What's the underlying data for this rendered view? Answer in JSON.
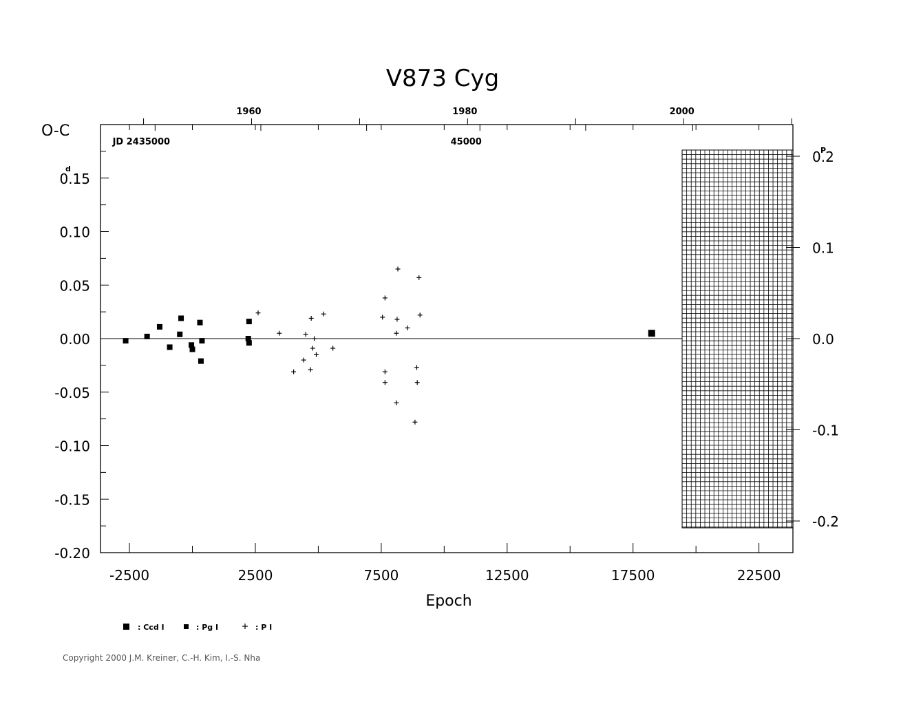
{
  "chart_data": {
    "type": "scatter",
    "title": "V873 Cyg",
    "xlabel": "Epoch",
    "ylabel": "O-C",
    "y_unit_left": "d",
    "y_unit_right": "P",
    "xlim": [
      -3650,
      23850
    ],
    "ylim": [
      -0.2,
      0.2
    ],
    "right_ylim": [
      -0.23,
      0.23
    ],
    "x_ticks": [
      "-2500",
      "2500",
      "7500",
      "12500",
      "17500",
      "22500"
    ],
    "x_tick_values": [
      -2500,
      2500,
      7500,
      12500,
      17500,
      22500
    ],
    "y_ticks": [
      "-0.20",
      "-0.15",
      "-0.10",
      "-0.05",
      "0.00",
      "0.05",
      "0.10",
      "0.15"
    ],
    "y_tick_values": [
      -0.2,
      -0.15,
      -0.1,
      -0.05,
      0.0,
      0.05,
      0.1,
      0.15
    ],
    "right_ticks": [
      "-0.2",
      "-0.1",
      "0.0",
      "0.1",
      "0.2"
    ],
    "right_tick_values": [
      -0.2,
      -0.1,
      0.0,
      0.1,
      0.2
    ],
    "top_year_ticks": [
      "1960",
      "1980",
      "2000"
    ],
    "top_year_epochs": [
      2350,
      10930,
      19550
    ],
    "jd_labels": [
      "JD 2435000",
      "45000"
    ],
    "jd_label_epochs": [
      -1700,
      11200
    ],
    "shaded_region": [
      19450,
      23850
    ],
    "series": [
      {
        "name": "Ccd I",
        "marker": "big-square",
        "points": [
          [
            18240,
            0.005
          ]
        ]
      },
      {
        "name": "Pg I",
        "marker": "small-square",
        "points": [
          [
            -2650,
            -0.002
          ],
          [
            -1800,
            0.002
          ],
          [
            -1300,
            0.011
          ],
          [
            -900,
            -0.008
          ],
          [
            -500,
            0.004
          ],
          [
            -450,
            0.019
          ],
          [
            -40,
            -0.006
          ],
          [
            0,
            -0.01
          ],
          [
            300,
            0.015
          ],
          [
            340,
            -0.021
          ],
          [
            380,
            -0.002
          ],
          [
            2250,
            0.016
          ],
          [
            2220,
            0.0
          ],
          [
            2250,
            -0.004
          ]
        ]
      },
      {
        "name": "P I",
        "marker": "plus",
        "points": [
          [
            2610,
            0.024
          ],
          [
            3450,
            0.005
          ],
          [
            4020,
            -0.031
          ],
          [
            4420,
            -0.02
          ],
          [
            4500,
            0.004
          ],
          [
            4720,
            0.019
          ],
          [
            4690,
            -0.029
          ],
          [
            4780,
            -0.009
          ],
          [
            4840,
            0.0
          ],
          [
            4920,
            -0.015
          ],
          [
            5210,
            0.023
          ],
          [
            5580,
            -0.009
          ],
          [
            7550,
            0.02
          ],
          [
            7650,
            0.038
          ],
          [
            7650,
            -0.031
          ],
          [
            7650,
            -0.041
          ],
          [
            8100,
            0.005
          ],
          [
            8130,
            0.018
          ],
          [
            8100,
            -0.06
          ],
          [
            8160,
            0.065
          ],
          [
            8540,
            0.01
          ],
          [
            8840,
            -0.078
          ],
          [
            8910,
            -0.027
          ],
          [
            8930,
            -0.041
          ],
          [
            9000,
            0.057
          ],
          [
            9040,
            0.022
          ]
        ]
      }
    ],
    "legend_placement": "bottom-left"
  },
  "legend": {
    "items": [
      {
        "label": ": Ccd I"
      },
      {
        "label": ": Pg I"
      },
      {
        "label": ": P I"
      }
    ]
  },
  "copyright": "Copyright 2000 J.M. Kreiner, C.-H. Kim, I.-S. Nha"
}
